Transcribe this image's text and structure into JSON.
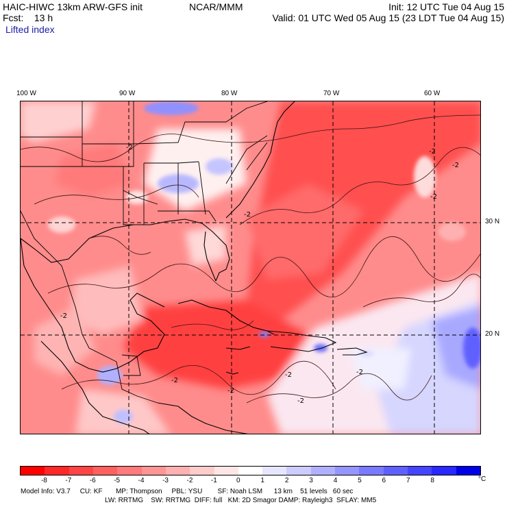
{
  "header": {
    "model": "HAIC-HIWC 13km ARW-GFS init",
    "org": "NCAR/MMM",
    "fcst": "Fcst:    13 h",
    "field": "Lifted index",
    "init": "Init: 12 UTC Tue 04 Aug 15",
    "valid": "Valid: 01 UTC Wed 05 Aug 15 (23 LDT Tue 04 Aug 15)"
  },
  "map": {
    "lon_labels": [
      "100 W",
      "90 W",
      "80 W",
      "70 W",
      "60 W"
    ],
    "lat_labels": [
      "30 N",
      "20 N"
    ],
    "contour_labels": [
      "-2",
      "-2",
      "-2",
      "-2",
      "-2",
      "-2",
      "-2",
      "-2",
      "-2",
      "-2",
      "-2"
    ]
  },
  "colorbar": {
    "colors": [
      "#ff0000",
      "#ff2828",
      "#ff4545",
      "#ff6060",
      "#ff7a7a",
      "#ff9595",
      "#ffb0b0",
      "#ffcccc",
      "#ffe6e6",
      "#ffffff",
      "#e6e6ff",
      "#ccccff",
      "#b0b0ff",
      "#9595ff",
      "#7a7aff",
      "#6060ff",
      "#4545ff",
      "#2828ff",
      "#0000e6"
    ],
    "ticks": [
      "-8",
      "-7",
      "-6",
      "-5",
      "-4",
      "-3",
      "-2",
      "-1",
      "0",
      "1",
      "2",
      "3",
      "4",
      "5",
      "6",
      "7",
      "8"
    ],
    "unit": "°C"
  },
  "footer": {
    "line1": "Model Info: V3.7     CU: KF       MP: Thompson     PBL: YSU        SF: Noah LSM      13 km    51 levels   60 sec",
    "line2": "LW: RRTMG    SW: RRTMG  DIFF: full   KM: 2D Smagor DAMP: Rayleigh3  SFLAY: MM5"
  }
}
